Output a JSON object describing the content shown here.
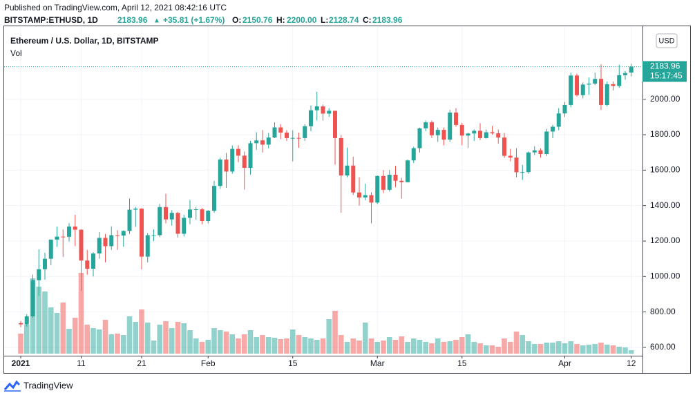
{
  "header": {
    "published": "Published on TradingView.com, April 12, 2021 08:42:16 UTC",
    "symbol": "BITSTAMP:ETHUSD, 1D",
    "arrow": "▲",
    "change": "+35.81 (+1.67%)",
    "o_label": "O:",
    "open": "2150.76",
    "h_label": "H:",
    "high": "2200.00",
    "l_label": "L:",
    "low": "2128.74",
    "c_label": "C:",
    "close": "2183.96"
  },
  "footer": {
    "brand": "TradingView"
  },
  "chart_data": {
    "type": "candlestick",
    "title": "Ethereum / U.S. Dollar, 1D, BITSTAMP",
    "volume_label": "Vol",
    "currency": "USD",
    "countdown": "15:17:45",
    "up_color": "#26a69a",
    "down_color": "#ef5350",
    "grid": true,
    "categories": [
      "2021-01-01",
      "2021-01-02",
      "2021-01-03",
      "2021-01-04",
      "2021-01-05",
      "2021-01-06",
      "2021-01-07",
      "2021-01-08",
      "2021-01-09",
      "2021-01-10",
      "2021-01-11",
      "2021-01-12",
      "2021-01-13",
      "2021-01-14",
      "2021-01-15",
      "2021-01-16",
      "2021-01-17",
      "2021-01-18",
      "2021-01-19",
      "2021-01-20",
      "2021-01-21",
      "2021-01-22",
      "2021-01-23",
      "2021-01-24",
      "2021-01-25",
      "2021-01-26",
      "2021-01-27",
      "2021-01-28",
      "2021-01-29",
      "2021-01-30",
      "2021-01-31",
      "2021-02-01",
      "2021-02-02",
      "2021-02-03",
      "2021-02-04",
      "2021-02-05",
      "2021-02-06",
      "2021-02-07",
      "2021-02-08",
      "2021-02-09",
      "2021-02-10",
      "2021-02-11",
      "2021-02-12",
      "2021-02-13",
      "2021-02-14",
      "2021-02-15",
      "2021-02-16",
      "2021-02-17",
      "2021-02-18",
      "2021-02-19",
      "2021-02-20",
      "2021-02-21",
      "2021-02-22",
      "2021-02-23",
      "2021-02-24",
      "2021-02-25",
      "2021-02-26",
      "2021-02-27",
      "2021-02-28",
      "2021-03-01",
      "2021-03-02",
      "2021-03-03",
      "2021-03-04",
      "2021-03-05",
      "2021-03-06",
      "2021-03-07",
      "2021-03-08",
      "2021-03-09",
      "2021-03-10",
      "2021-03-11",
      "2021-03-12",
      "2021-03-13",
      "2021-03-14",
      "2021-03-15",
      "2021-03-16",
      "2021-03-17",
      "2021-03-18",
      "2021-03-19",
      "2021-03-20",
      "2021-03-21",
      "2021-03-22",
      "2021-03-23",
      "2021-03-24",
      "2021-03-25",
      "2021-03-26",
      "2021-03-27",
      "2021-03-28",
      "2021-03-29",
      "2021-03-30",
      "2021-03-31",
      "2021-04-01",
      "2021-04-02",
      "2021-04-03",
      "2021-04-04",
      "2021-04-05",
      "2021-04-06",
      "2021-04-07",
      "2021-04-08",
      "2021-04-09",
      "2021-04-10",
      "2021-04-11",
      "2021-04-12"
    ],
    "open": [
      737,
      730,
      775,
      979,
      1041,
      1100,
      1208,
      1225,
      1224,
      1282,
      1264,
      1090,
      1044,
      1130,
      1218,
      1171,
      1233,
      1231,
      1257,
      1377,
      1383,
      1112,
      1233,
      1233,
      1392,
      1322,
      1359,
      1241,
      1331,
      1378,
      1379,
      1313,
      1371,
      1511,
      1660,
      1592,
      1720,
      1682,
      1613,
      1752,
      1768,
      1744,
      1784,
      1841,
      1812,
      1781,
      1782,
      1781,
      1848,
      1938,
      1960,
      1919,
      1935,
      1781,
      1570,
      1626,
      1474,
      1446,
      1459,
      1417,
      1567,
      1489,
      1574,
      1540,
      1532,
      1655,
      1724,
      1836,
      1870,
      1797,
      1827,
      1772,
      1925,
      1855,
      1795,
      1807,
      1822,
      1781,
      1814,
      1808,
      1784,
      1681,
      1671,
      1588,
      1589,
      1700,
      1712,
      1691,
      1818,
      1845,
      1920,
      1968,
      2134,
      2023,
      2083,
      2088,
      2115,
      1968,
      2085,
      2075,
      2136,
      2150.76
    ],
    "high": [
      749,
      787,
      1011,
      1153,
      1134,
      1210,
      1282,
      1265,
      1301,
      1348,
      1266,
      1150,
      1137,
      1250,
      1240,
      1283,
      1262,
      1260,
      1440,
      1392,
      1385,
      1245,
      1265,
      1410,
      1467,
      1374,
      1364,
      1348,
      1432,
      1392,
      1386,
      1375,
      1540,
      1670,
      1698,
      1739,
      1740,
      1705,
      1765,
      1814,
      1826,
      1810,
      1870,
      1860,
      1826,
      1825,
      1812,
      1860,
      1965,
      2042,
      1970,
      1950,
      1935,
      1799,
      1727,
      1676,
      1560,
      1524,
      1475,
      1570,
      1600,
      1600,
      1625,
      1557,
      1660,
      1732,
      1840,
      1880,
      1880,
      1840,
      1840,
      1940,
      1950,
      1867,
      1812,
      1830,
      1865,
      1830,
      1850,
      1830,
      1810,
      1720,
      1724,
      1630,
      1705,
      1735,
      1723,
      1833,
      1855,
      1950,
      1985,
      2150,
      2145,
      2095,
      2122,
      2150,
      2197,
      2100,
      2100,
      2195,
      2160,
      2200
    ],
    "low": [
      714,
      716,
      768,
      890,
      982,
      1064,
      1167,
      1110,
      1197,
      1171,
      920,
      1010,
      1000,
      1100,
      1080,
      1150,
      1150,
      1168,
      1240,
      1280,
      1040,
      1080,
      1200,
      1222,
      1300,
      1287,
      1220,
      1225,
      1295,
      1320,
      1295,
      1300,
      1360,
      1495,
      1500,
      1580,
      1645,
      1490,
      1575,
      1715,
      1700,
      1723,
      1780,
      1775,
      1765,
      1650,
      1726,
      1765,
      1820,
      1880,
      1880,
      1900,
      1630,
      1360,
      1560,
      1460,
      1400,
      1430,
      1300,
      1410,
      1470,
      1480,
      1505,
      1440,
      1530,
      1640,
      1700,
      1820,
      1780,
      1760,
      1740,
      1760,
      1845,
      1740,
      1725,
      1765,
      1770,
      1778,
      1800,
      1750,
      1670,
      1650,
      1560,
      1545,
      1580,
      1685,
      1670,
      1680,
      1780,
      1825,
      1900,
      1955,
      2015,
      2005,
      2025,
      2080,
      1940,
      1960,
      2050,
      2065,
      2110,
      2128.74
    ],
    "close": [
      730,
      775,
      979,
      1041,
      1100,
      1208,
      1225,
      1224,
      1282,
      1264,
      1090,
      1044,
      1130,
      1218,
      1171,
      1233,
      1231,
      1257,
      1377,
      1383,
      1112,
      1233,
      1233,
      1392,
      1322,
      1359,
      1241,
      1331,
      1378,
      1379,
      1313,
      1371,
      1511,
      1660,
      1592,
      1720,
      1682,
      1613,
      1752,
      1768,
      1744,
      1784,
      1841,
      1812,
      1781,
      1782,
      1781,
      1848,
      1938,
      1960,
      1919,
      1935,
      1781,
      1570,
      1626,
      1474,
      1446,
      1459,
      1417,
      1567,
      1489,
      1574,
      1540,
      1532,
      1655,
      1724,
      1836,
      1870,
      1797,
      1827,
      1772,
      1925,
      1855,
      1795,
      1807,
      1822,
      1781,
      1814,
      1808,
      1784,
      1681,
      1671,
      1588,
      1589,
      1700,
      1712,
      1691,
      1818,
      1845,
      1920,
      1968,
      2134,
      2023,
      2083,
      2088,
      2115,
      1968,
      2085,
      2075,
      2136,
      2148.15,
      2183.96
    ],
    "volume": [
      29,
      42,
      109,
      97,
      90,
      67,
      59,
      74,
      36,
      52,
      117,
      42,
      37,
      35,
      49,
      28,
      29,
      27,
      54,
      46,
      64,
      45,
      19,
      42,
      47,
      37,
      46,
      44,
      34,
      22,
      17,
      20,
      37,
      34,
      32,
      28,
      22,
      28,
      34,
      24,
      27,
      24,
      23,
      21,
      22,
      35,
      27,
      24,
      22,
      20,
      22,
      50,
      62,
      27,
      17,
      22,
      19,
      45,
      22,
      17,
      19,
      24,
      20,
      25,
      17,
      22,
      20,
      17,
      15,
      22,
      17,
      18,
      20,
      24,
      28,
      17,
      15,
      12,
      12,
      10,
      22,
      17,
      32,
      27,
      18,
      14,
      14,
      16,
      16,
      18,
      15,
      18,
      14,
      12,
      13,
      14,
      16,
      13,
      12,
      10,
      9,
      5
    ],
    "ylim": [
      553,
      2412
    ],
    "yticks": [
      {
        "value": 600,
        "label": "600.00"
      },
      {
        "value": 800,
        "label": "800.00"
      },
      {
        "value": 1000,
        "label": "1000.00"
      },
      {
        "value": 1200,
        "label": "1200.00"
      },
      {
        "value": 1400,
        "label": "1400.00"
      },
      {
        "value": 1600,
        "label": "1600.00"
      },
      {
        "value": 1800,
        "label": "1800.00"
      },
      {
        "value": 2000,
        "label": "2000.00"
      }
    ],
    "xticks": [
      {
        "value": "2021-01-01",
        "label": "2021"
      },
      {
        "value": "2021-01-11",
        "label": "11"
      },
      {
        "value": "2021-01-21",
        "label": "21"
      },
      {
        "value": "2021-02-01",
        "label": "Feb"
      },
      {
        "value": "2021-02-15",
        "label": "15"
      },
      {
        "value": "2021-03-01",
        "label": "Mar"
      },
      {
        "value": "2021-03-15",
        "label": "15"
      },
      {
        "value": "2021-04-01",
        "label": "Apr"
      },
      {
        "value": "2021-04-12",
        "label": "12"
      }
    ]
  }
}
